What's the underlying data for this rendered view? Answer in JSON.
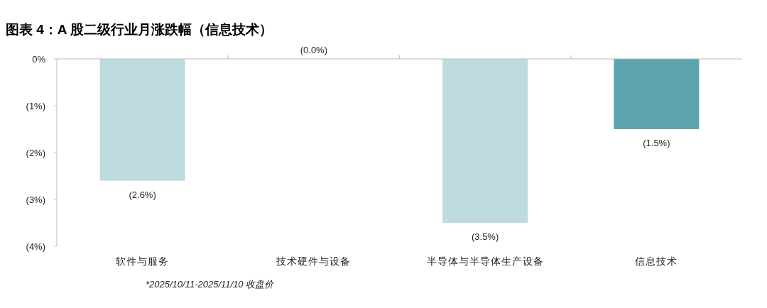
{
  "chart_data": {
    "type": "bar",
    "title": "图表 4：A 股二级行业月涨跌幅（信息技术）",
    "categories": [
      "软件与服务",
      "技术硬件与设备",
      "半导体与半导体生产设备",
      "信息技术"
    ],
    "values": [
      -2.6,
      0,
      -3.5,
      -1.5
    ],
    "colors": [
      "#bedbdf",
      "#bedbdf",
      "#bedbdf",
      "#5ca3ad"
    ],
    "value_labels": [
      "(2.6%)",
      "(0.0%)",
      "(3.5%)",
      "(1.5%)"
    ],
    "ylim": [
      -4,
      0
    ],
    "yticks": [
      {
        "value": 0,
        "label": "0%"
      },
      {
        "value": -1,
        "label": "(1%)"
      },
      {
        "value": -2,
        "label": "(2%)"
      },
      {
        "value": -3,
        "label": "(3%)"
      },
      {
        "value": -4,
        "label": "(4%)"
      }
    ],
    "grid": false,
    "annotations": [
      "*2025/10/11-2025/11/10 收盘价"
    ]
  }
}
